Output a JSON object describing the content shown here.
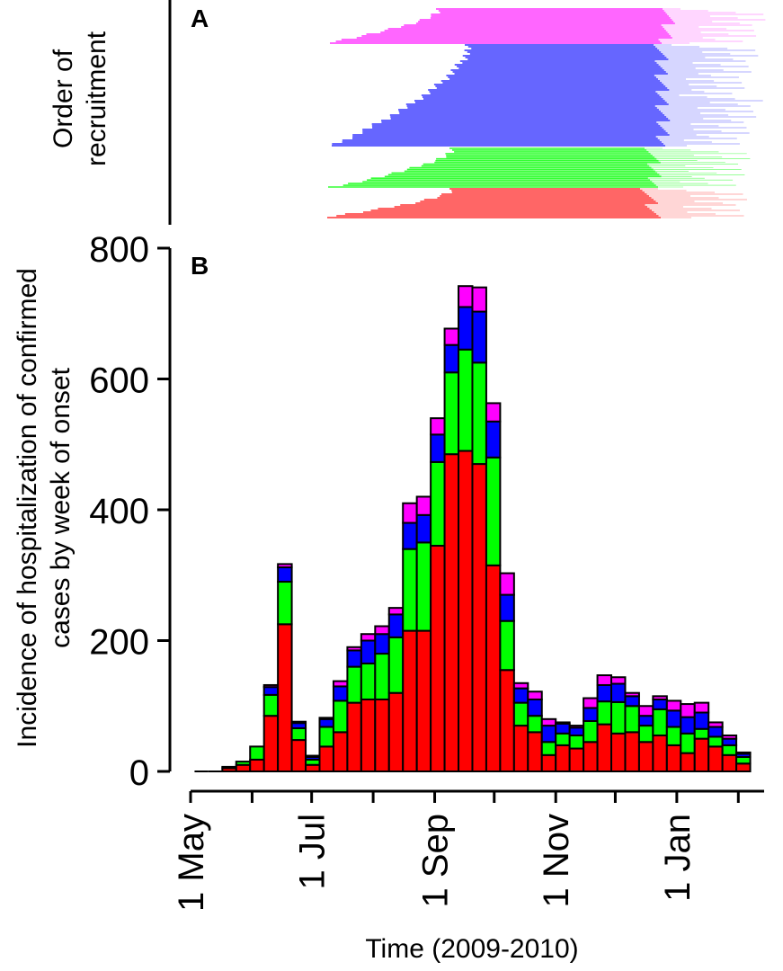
{
  "panel_a": {
    "label": "A",
    "ylabel_line1": "Order of",
    "ylabel_line2": "recruitment",
    "colors_top_to_bottom": [
      "#ff33ff",
      "#3333ff",
      "#33ff33",
      "#ff3333"
    ]
  },
  "chart_data": {
    "type": "bar",
    "stacked": true,
    "panel_label": "B",
    "ylabel_line1": "Incidence of hospitalization of confirmed",
    "ylabel_line2": "cases by week of onset",
    "xlabel": "Time (2009-2010)",
    "ylim": [
      0,
      800
    ],
    "yticks": [
      0,
      200,
      400,
      600,
      800
    ],
    "x_tick_labels": [
      "1 May",
      "1 Jul",
      "1 Sep",
      "1 Nov",
      "1 Jan"
    ],
    "x_axis_start": "2009-05-01",
    "x_axis_end": "2010-02-14",
    "week_start": "2009-05-03",
    "series": [
      {
        "color": "#ff0000",
        "values": [
          0,
          0,
          5,
          10,
          18,
          85,
          225,
          48,
          10,
          38,
          60,
          105,
          110,
          110,
          120,
          215,
          215,
          345,
          485,
          490,
          470,
          315,
          155,
          70,
          60,
          25,
          40,
          35,
          45,
          72,
          58,
          60,
          45,
          55,
          40,
          28,
          50,
          38,
          25,
          12
        ]
      },
      {
        "color": "#00ff00",
        "values": [
          0,
          0,
          2,
          5,
          20,
          32,
          65,
          18,
          8,
          30,
          48,
          55,
          55,
          70,
          85,
          125,
          135,
          128,
          125,
          155,
          155,
          165,
          75,
          35,
          25,
          20,
          18,
          20,
          32,
          35,
          48,
          40,
          25,
          40,
          28,
          30,
          15,
          15,
          15,
          10
        ]
      },
      {
        "color": "#0000ff",
        "values": [
          0,
          0,
          0,
          0,
          0,
          12,
          22,
          8,
          4,
          12,
          22,
          25,
          35,
          30,
          35,
          40,
          42,
          42,
          42,
          65,
          78,
          55,
          40,
          22,
          25,
          25,
          15,
          12,
          20,
          25,
          28,
          15,
          15,
          15,
          25,
          25,
          25,
          15,
          10,
          5
        ]
      },
      {
        "color": "#ff00ff",
        "values": [
          0,
          0,
          0,
          0,
          0,
          3,
          5,
          2,
          2,
          2,
          8,
          5,
          10,
          12,
          10,
          30,
          28,
          25,
          25,
          32,
          37,
          28,
          33,
          8,
          12,
          10,
          2,
          3,
          15,
          15,
          10,
          5,
          15,
          5,
          15,
          20,
          15,
          7,
          5,
          2
        ]
      }
    ]
  }
}
